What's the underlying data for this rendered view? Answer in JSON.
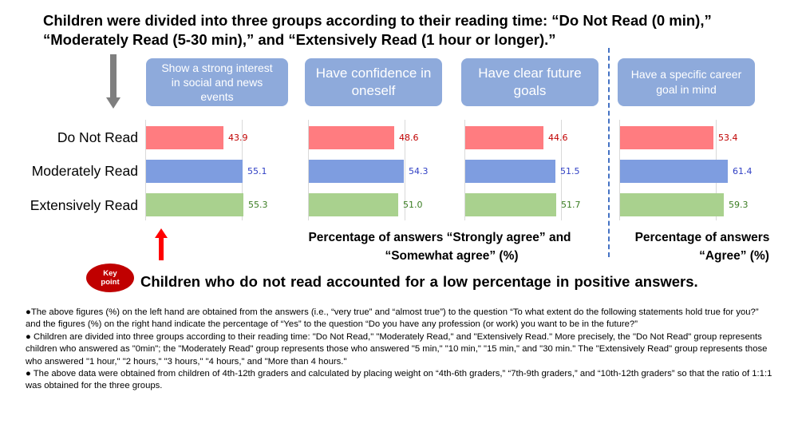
{
  "heading": {
    "line1": "Children were divided into three groups according to their reading time: “Do Not Read (0 min),”",
    "line2": "“Moderately Read (5-30 min),” and “Extensively Read (1 hour or longer).”"
  },
  "colors": {
    "do_not_read": "#ff7c80",
    "moderately_read": "#7e9de0",
    "extensively_read": "#a9d18e",
    "panel_title_bg": "#8eaadb",
    "value_red": "#c00000",
    "value_blue": "#2f3fc4",
    "value_green": "#3a7d22"
  },
  "chart_data": {
    "type": "bar",
    "orientation": "horizontal",
    "categories": [
      "Do Not Read",
      "Moderately Read",
      "Extensively Read"
    ],
    "panels": [
      {
        "title": "Show a strong interest in social and news events",
        "values": [
          43.9,
          55.1,
          55.3
        ],
        "value_labels": [
          "43.9",
          "55.1",
          "55.3"
        ]
      },
      {
        "title": "Have confidence in oneself",
        "values": [
          48.6,
          54.3,
          51.0
        ],
        "value_labels": [
          "48.6",
          "54.3",
          "51.0"
        ]
      },
      {
        "title": "Have clear future goals",
        "values": [
          44.6,
          51.5,
          51.7
        ],
        "value_labels": [
          "44.6",
          "51.5",
          "51.7"
        ]
      },
      {
        "title": "Have a specific career goal in mind",
        "values": [
          53.4,
          61.4,
          59.3
        ],
        "value_labels": [
          "53.4",
          "61.4",
          "59.3"
        ]
      }
    ],
    "captions": {
      "left": "Percentage of answers “Strongly agree” and “Somewhat agree” (%)",
      "right": "Percentage of answers “Agree” (%)"
    }
  },
  "captions": {
    "left_line1": "Percentage of answers “Strongly agree” and",
    "left_line2": "“Somewhat agree” (%)",
    "right_line1": "Percentage of answers",
    "right_line2": "“Agree” (%)"
  },
  "key_point": {
    "badge_line1": "Key",
    "badge_line2": "point",
    "text": "Children who do not read accounted for a low percentage in positive answers."
  },
  "notes": [
    "●The above figures (%) on the left hand are obtained from the answers (i.e., “very true” and “almost true”) to the question “To what extent do the following statements hold true for you?” and the figures (%) on the right hand indicate the percentage of “Yes” to the question “Do you have any profession (or work) you want to be in the future?”",
    "● Children are divided into three groups according to their reading time: \"Do Not Read,\" \"Moderately Read,\" and \"Extensively Read.\" More precisely, the \"Do Not Read\" group represents children who answered as \"0min\"; the \"Moderately Read\" group represents those who answered \"5 min,\" \"10 min,\" \"15 min,\" and \"30 min.\" The \"Extensively Read\" group represents those who answered \"1 hour,\" \"2 hours,\" \"3 hours,\" \"4 hours,\" and \"More than 4 hours.\"",
    "● The above data were obtained from children of 4th-12th graders and calculated by placing weight on “4th-6th graders,” “7th-9th graders,” and “10th-12th graders” so that the ratio of 1:1:1 was obtained for the three groups."
  ]
}
